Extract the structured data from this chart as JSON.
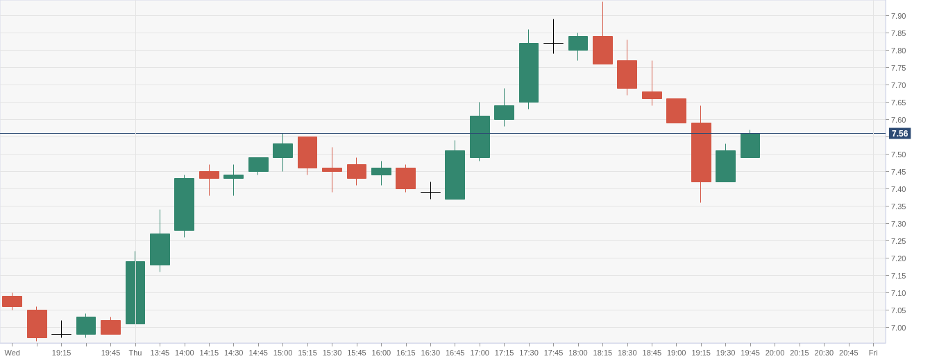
{
  "chart_data": {
    "type": "candlestick",
    "categories": [
      "Wed",
      null,
      "19:15",
      null,
      "19:45",
      "Thu",
      "13:45",
      "14:00",
      "14:15",
      "14:30",
      "14:45",
      "15:00",
      "15:15",
      "15:30",
      "15:45",
      "16:00",
      "16:15",
      "16:30",
      "16:45",
      "17:00",
      "17:15",
      "17:30",
      "17:45",
      "18:00",
      "18:15",
      "18:30",
      "18:45",
      "19:00",
      "19:15",
      "19:30",
      "19:45",
      "20:00",
      "20:15",
      "20:30",
      "20:45",
      "Fri"
    ],
    "ohlc": [
      [
        7.09,
        7.1,
        7.05,
        7.06
      ],
      [
        7.05,
        7.06,
        6.96,
        6.97
      ],
      [
        6.98,
        7.02,
        6.97,
        6.98
      ],
      [
        6.98,
        7.04,
        6.97,
        7.03
      ],
      [
        7.02,
        7.03,
        6.98,
        6.98
      ],
      [
        7.01,
        7.22,
        7.01,
        7.19
      ],
      [
        7.18,
        7.34,
        7.16,
        7.27
      ],
      [
        7.28,
        7.44,
        7.26,
        7.43
      ],
      [
        7.45,
        7.47,
        7.38,
        7.43
      ],
      [
        7.43,
        7.47,
        7.38,
        7.44
      ],
      [
        7.45,
        7.49,
        7.44,
        7.49
      ],
      [
        7.49,
        7.56,
        7.45,
        7.53
      ],
      [
        7.55,
        7.55,
        7.44,
        7.46
      ],
      [
        7.46,
        7.52,
        7.39,
        7.45
      ],
      [
        7.47,
        7.49,
        7.41,
        7.43
      ],
      [
        7.44,
        7.48,
        7.41,
        7.46
      ],
      [
        7.46,
        7.47,
        7.39,
        7.4
      ],
      [
        7.39,
        7.42,
        7.37,
        7.39
      ],
      [
        7.37,
        7.54,
        7.37,
        7.51
      ],
      [
        7.49,
        7.65,
        7.48,
        7.61
      ],
      [
        7.6,
        7.69,
        7.58,
        7.64
      ],
      [
        7.65,
        7.86,
        7.63,
        7.82
      ],
      [
        7.82,
        7.89,
        7.79,
        7.82
      ],
      [
        7.8,
        7.85,
        7.77,
        7.84
      ],
      [
        7.84,
        7.94,
        7.76,
        7.76
      ],
      [
        7.77,
        7.83,
        7.67,
        7.69
      ],
      [
        7.68,
        7.77,
        7.64,
        7.66
      ],
      [
        7.66,
        7.66,
        7.59,
        7.59
      ],
      [
        7.59,
        7.64,
        7.36,
        7.42
      ],
      [
        7.42,
        7.53,
        7.42,
        7.51
      ],
      [
        7.49,
        7.57,
        7.49,
        7.56
      ],
      null,
      null,
      null,
      null,
      null
    ],
    "colors": [
      "#d45745",
      "#d45745",
      "#000000",
      "#33876f",
      "#d45745",
      "#33876f",
      "#33876f",
      "#33876f",
      "#d45745",
      "#33876f",
      "#33876f",
      "#33876f",
      "#d45745",
      "#d45745",
      "#d45745",
      "#33876f",
      "#d45745",
      "#000000",
      "#33876f",
      "#33876f",
      "#33876f",
      "#33876f",
      "#000000",
      "#33876f",
      "#d45745",
      "#d45745",
      "#d45745",
      "#d45745",
      "#d45745",
      "#33876f",
      "#33876f",
      null,
      null,
      null,
      null,
      null
    ],
    "ylim": [
      6.955,
      7.945
    ],
    "yticks": [
      {
        "value": 7.0,
        "label": "7.00"
      },
      {
        "value": 7.05,
        "label": "7.05"
      },
      {
        "value": 7.1,
        "label": "7.10"
      },
      {
        "value": 7.15,
        "label": "7.15"
      },
      {
        "value": 7.2,
        "label": "7.20"
      },
      {
        "value": 7.25,
        "label": "7.25"
      },
      {
        "value": 7.3,
        "label": "7.30"
      },
      {
        "value": 7.35,
        "label": "7.35"
      },
      {
        "value": 7.4,
        "label": "7.40"
      },
      {
        "value": 7.45,
        "label": "7.45"
      },
      {
        "value": 7.5,
        "label": "7.50"
      },
      {
        "value": 7.55,
        "label": null
      },
      {
        "value": 7.6,
        "label": "7.60"
      },
      {
        "value": 7.65,
        "label": "7.65"
      },
      {
        "value": 7.7,
        "label": "7.70"
      },
      {
        "value": 7.75,
        "label": "7.75"
      },
      {
        "value": 7.8,
        "label": "7.80"
      },
      {
        "value": 7.85,
        "label": "7.85"
      },
      {
        "value": 7.9,
        "label": "7.90"
      }
    ],
    "ref_lines": [
      {
        "axis": "y",
        "value": 7.56,
        "label": "7.56",
        "color": "#2c4a73"
      },
      {
        "axis": "x",
        "value": "Thu",
        "color": "#e4e4e4"
      },
      {
        "axis": "x",
        "value": "Fri",
        "color": "#e4e4e4"
      }
    ],
    "grid": "y"
  }
}
